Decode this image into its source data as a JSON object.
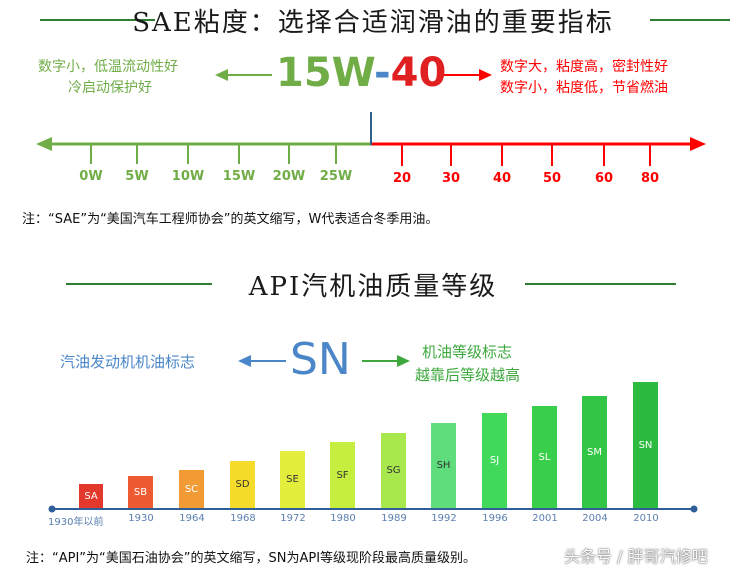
{
  "sae": {
    "title": "SAE粘度：选择合适润滑油的重要指标",
    "left_lines": [
      "数字小，低温流动性好",
      "冷启动保护好"
    ],
    "right_lines": [
      "数字大，粘度高，密封性好",
      "数字小，粘度低，节省燃油"
    ],
    "code_w": "15W",
    "code_dash": "-",
    "code_hot": "40",
    "cold_ticks": [
      "0W",
      "5W",
      "10W",
      "15W",
      "20W",
      "25W"
    ],
    "hot_ticks": [
      "20",
      "30",
      "40",
      "50",
      "60",
      "80"
    ],
    "note": "注：“SAE”为“美国汽车工程师协会”的英文缩写，W代表适合冬季用油。",
    "colors": {
      "green": "#70ad47",
      "red": "#ff0000",
      "blue": "#4a86c8",
      "hot_digits": "#e02020"
    }
  },
  "api": {
    "title": "API汽机油质量等级",
    "left_label": "汽油发动机机油标志",
    "big_code": "SN",
    "right_lines": [
      "机油等级标志",
      "越靠后等级越高"
    ],
    "grades": [
      {
        "code": "SA",
        "year": "1930年以前",
        "color": "#e3392c"
      },
      {
        "code": "SB",
        "year": "1930",
        "color": "#ee5b33"
      },
      {
        "code": "SC",
        "year": "1964",
        "color": "#f29b35"
      },
      {
        "code": "SD",
        "year": "1968",
        "color": "#f6dc2a"
      },
      {
        "code": "SE",
        "year": "1972",
        "color": "#e3ee3c"
      },
      {
        "code": "SF",
        "year": "1980",
        "color": "#c6ee3e"
      },
      {
        "code": "SG",
        "year": "1989",
        "color": "#a8e84c"
      },
      {
        "code": "SH",
        "year": "1992",
        "color": "#5fdd7d"
      },
      {
        "code": "SJ",
        "year": "1996",
        "color": "#40d95a"
      },
      {
        "code": "SL",
        "year": "2001",
        "color": "#39cf4a"
      },
      {
        "code": "SM",
        "year": "2004",
        "color": "#33c545"
      },
      {
        "code": "SN",
        "year": "2010",
        "color": "#2cbb3e"
      }
    ],
    "note": "注：“API”为“美国石油协会”的英文缩写，SN为API等级现阶段最高质量级别。",
    "watermark": "头条号 / 胖哥汽修吧"
  }
}
